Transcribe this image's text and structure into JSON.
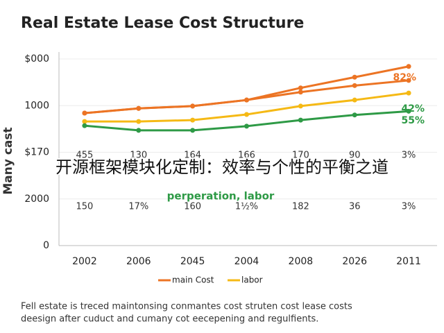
{
  "chart_data": {
    "type": "line",
    "title": "Real Estate Lease Cost Structure",
    "y_label": "Many cast",
    "overlay_text": "开源框架模块化定制：效率与个性的平衡之道",
    "categories": [
      "2002",
      "2006",
      "2045",
      "2004",
      "2008",
      "2026",
      "2011"
    ],
    "ylim": [
      0,
      4
    ],
    "yticks": [
      0,
      {
        "value": 1,
        "label": "2000"
      },
      {
        "value": 2,
        "label": "$170"
      },
      {
        "value": 3,
        "label": "1000"
      },
      {
        "value": 4,
        "label": "$000"
      }
    ],
    "grid": true,
    "series": [
      {
        "name": "main Cost",
        "color": "#ec7424",
        "values": [
          2.84,
          2.94,
          2.99,
          3.12,
          3.38,
          3.61,
          3.84
        ]
      },
      {
        "color": "#ec7424",
        "values": [
          2.84,
          2.94,
          2.99,
          3.12,
          3.29,
          3.43,
          3.54
        ]
      },
      {
        "name": "labor",
        "color": "#f5b915",
        "values": [
          2.66,
          2.66,
          2.69,
          2.81,
          2.99,
          3.12,
          3.27
        ]
      },
      {
        "color": "#2e9a46",
        "values": [
          2.57,
          2.47,
          2.47,
          2.56,
          2.69,
          2.8,
          2.88
        ]
      }
    ],
    "annotations": [
      {
        "text": "82%",
        "color": "#ec7424"
      },
      {
        "text": "42%",
        "color": "#2e9a46"
      },
      {
        "text": "55%",
        "color": "#2e9a46"
      },
      {
        "text": "perperation, labor",
        "color": "#2e9a46"
      }
    ],
    "rows": [
      [
        "455",
        "130",
        "164",
        "166",
        "170",
        "90",
        "3%"
      ],
      [
        "150",
        "17%",
        "160",
        "1½%",
        "182",
        "36",
        "3%"
      ]
    ],
    "caption": [
      "Fell estate is treced maintonsing conmantes cost struten cost lease costs",
      "deesign after cuduct and cumany cot eecepening and regulfients."
    ]
  }
}
